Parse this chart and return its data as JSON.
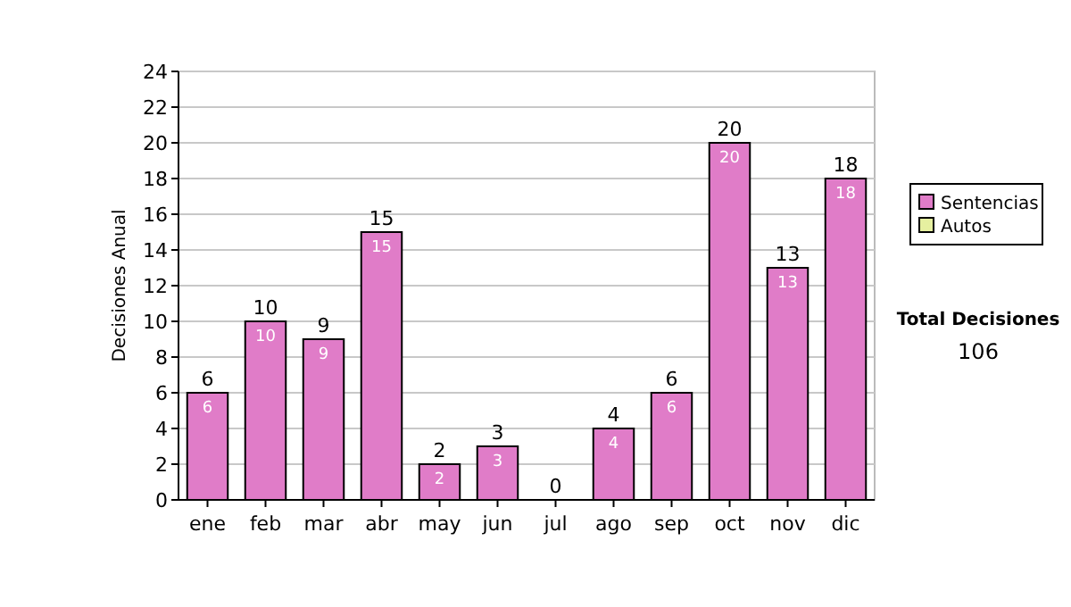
{
  "chart_data": {
    "type": "bar",
    "stacked": true,
    "ylabel": "Decisiones Anual",
    "categories": [
      "ene",
      "feb",
      "mar",
      "abr",
      "may",
      "jun",
      "jul",
      "ago",
      "sep",
      "oct",
      "nov",
      "dic"
    ],
    "series": [
      {
        "name": "Sentencias",
        "color": "#e07cc8",
        "values": [
          6,
          10,
          9,
          15,
          2,
          3,
          0,
          4,
          6,
          20,
          13,
          18
        ],
        "value_labels": [
          "6",
          "10",
          "9",
          "15",
          "2",
          "3",
          null,
          "4",
          "6",
          "20",
          "13",
          "18"
        ]
      },
      {
        "name": "Autos",
        "color": "#e6f0a0",
        "values": [
          0,
          0,
          0,
          0,
          0,
          0,
          0,
          0,
          0,
          0,
          0,
          0
        ]
      }
    ],
    "totals": [
      "6",
      "10",
      "9",
      "15",
      "2",
      "3",
      "0",
      "4",
      "6",
      "20",
      "13",
      "18"
    ],
    "ylim": [
      0,
      24
    ],
    "yticks": [
      0,
      2,
      4,
      6,
      8,
      10,
      12,
      14,
      16,
      18,
      20,
      22,
      24
    ],
    "grid": "y",
    "legend": "right",
    "annotations": [
      "Total Decisiones",
      "106"
    ]
  }
}
